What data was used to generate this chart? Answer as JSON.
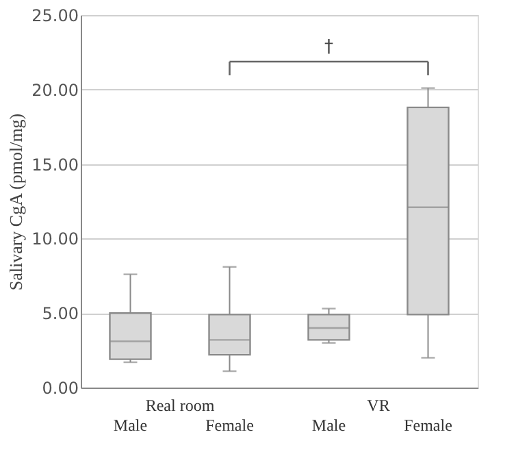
{
  "chart_data": {
    "type": "box",
    "ylabel": "Salivary CgA (pmol/mg)",
    "categories": [
      "Male",
      "Female",
      "Male",
      "Female"
    ],
    "boxes": [
      {
        "low": 1.7,
        "q1": 1.9,
        "median": 3.1,
        "q3": 5.0,
        "high": 7.6
      },
      {
        "low": 1.1,
        "q1": 2.2,
        "median": 3.2,
        "q3": 4.9,
        "high": 8.1
      },
      {
        "low": 3.0,
        "q1": 3.2,
        "median": 4.0,
        "q3": 4.9,
        "high": 5.3
      },
      {
        "low": 2.0,
        "q1": 4.9,
        "median": 12.1,
        "q3": 18.8,
        "high": 20.1
      }
    ],
    "color": "#d9d9d9",
    "ylim": [
      0,
      25
    ],
    "yticks": [
      {
        "value": 0,
        "label": "0.00"
      },
      {
        "value": 5,
        "label": "5.00"
      },
      {
        "value": 10,
        "label": "10.00"
      },
      {
        "value": 15,
        "label": "15.00"
      },
      {
        "value": 20,
        "label": "20.00"
      },
      {
        "value": 25,
        "label": "25.00"
      }
    ],
    "grid": "y",
    "annotations": [
      "Real room",
      "VR",
      "†"
    ]
  }
}
